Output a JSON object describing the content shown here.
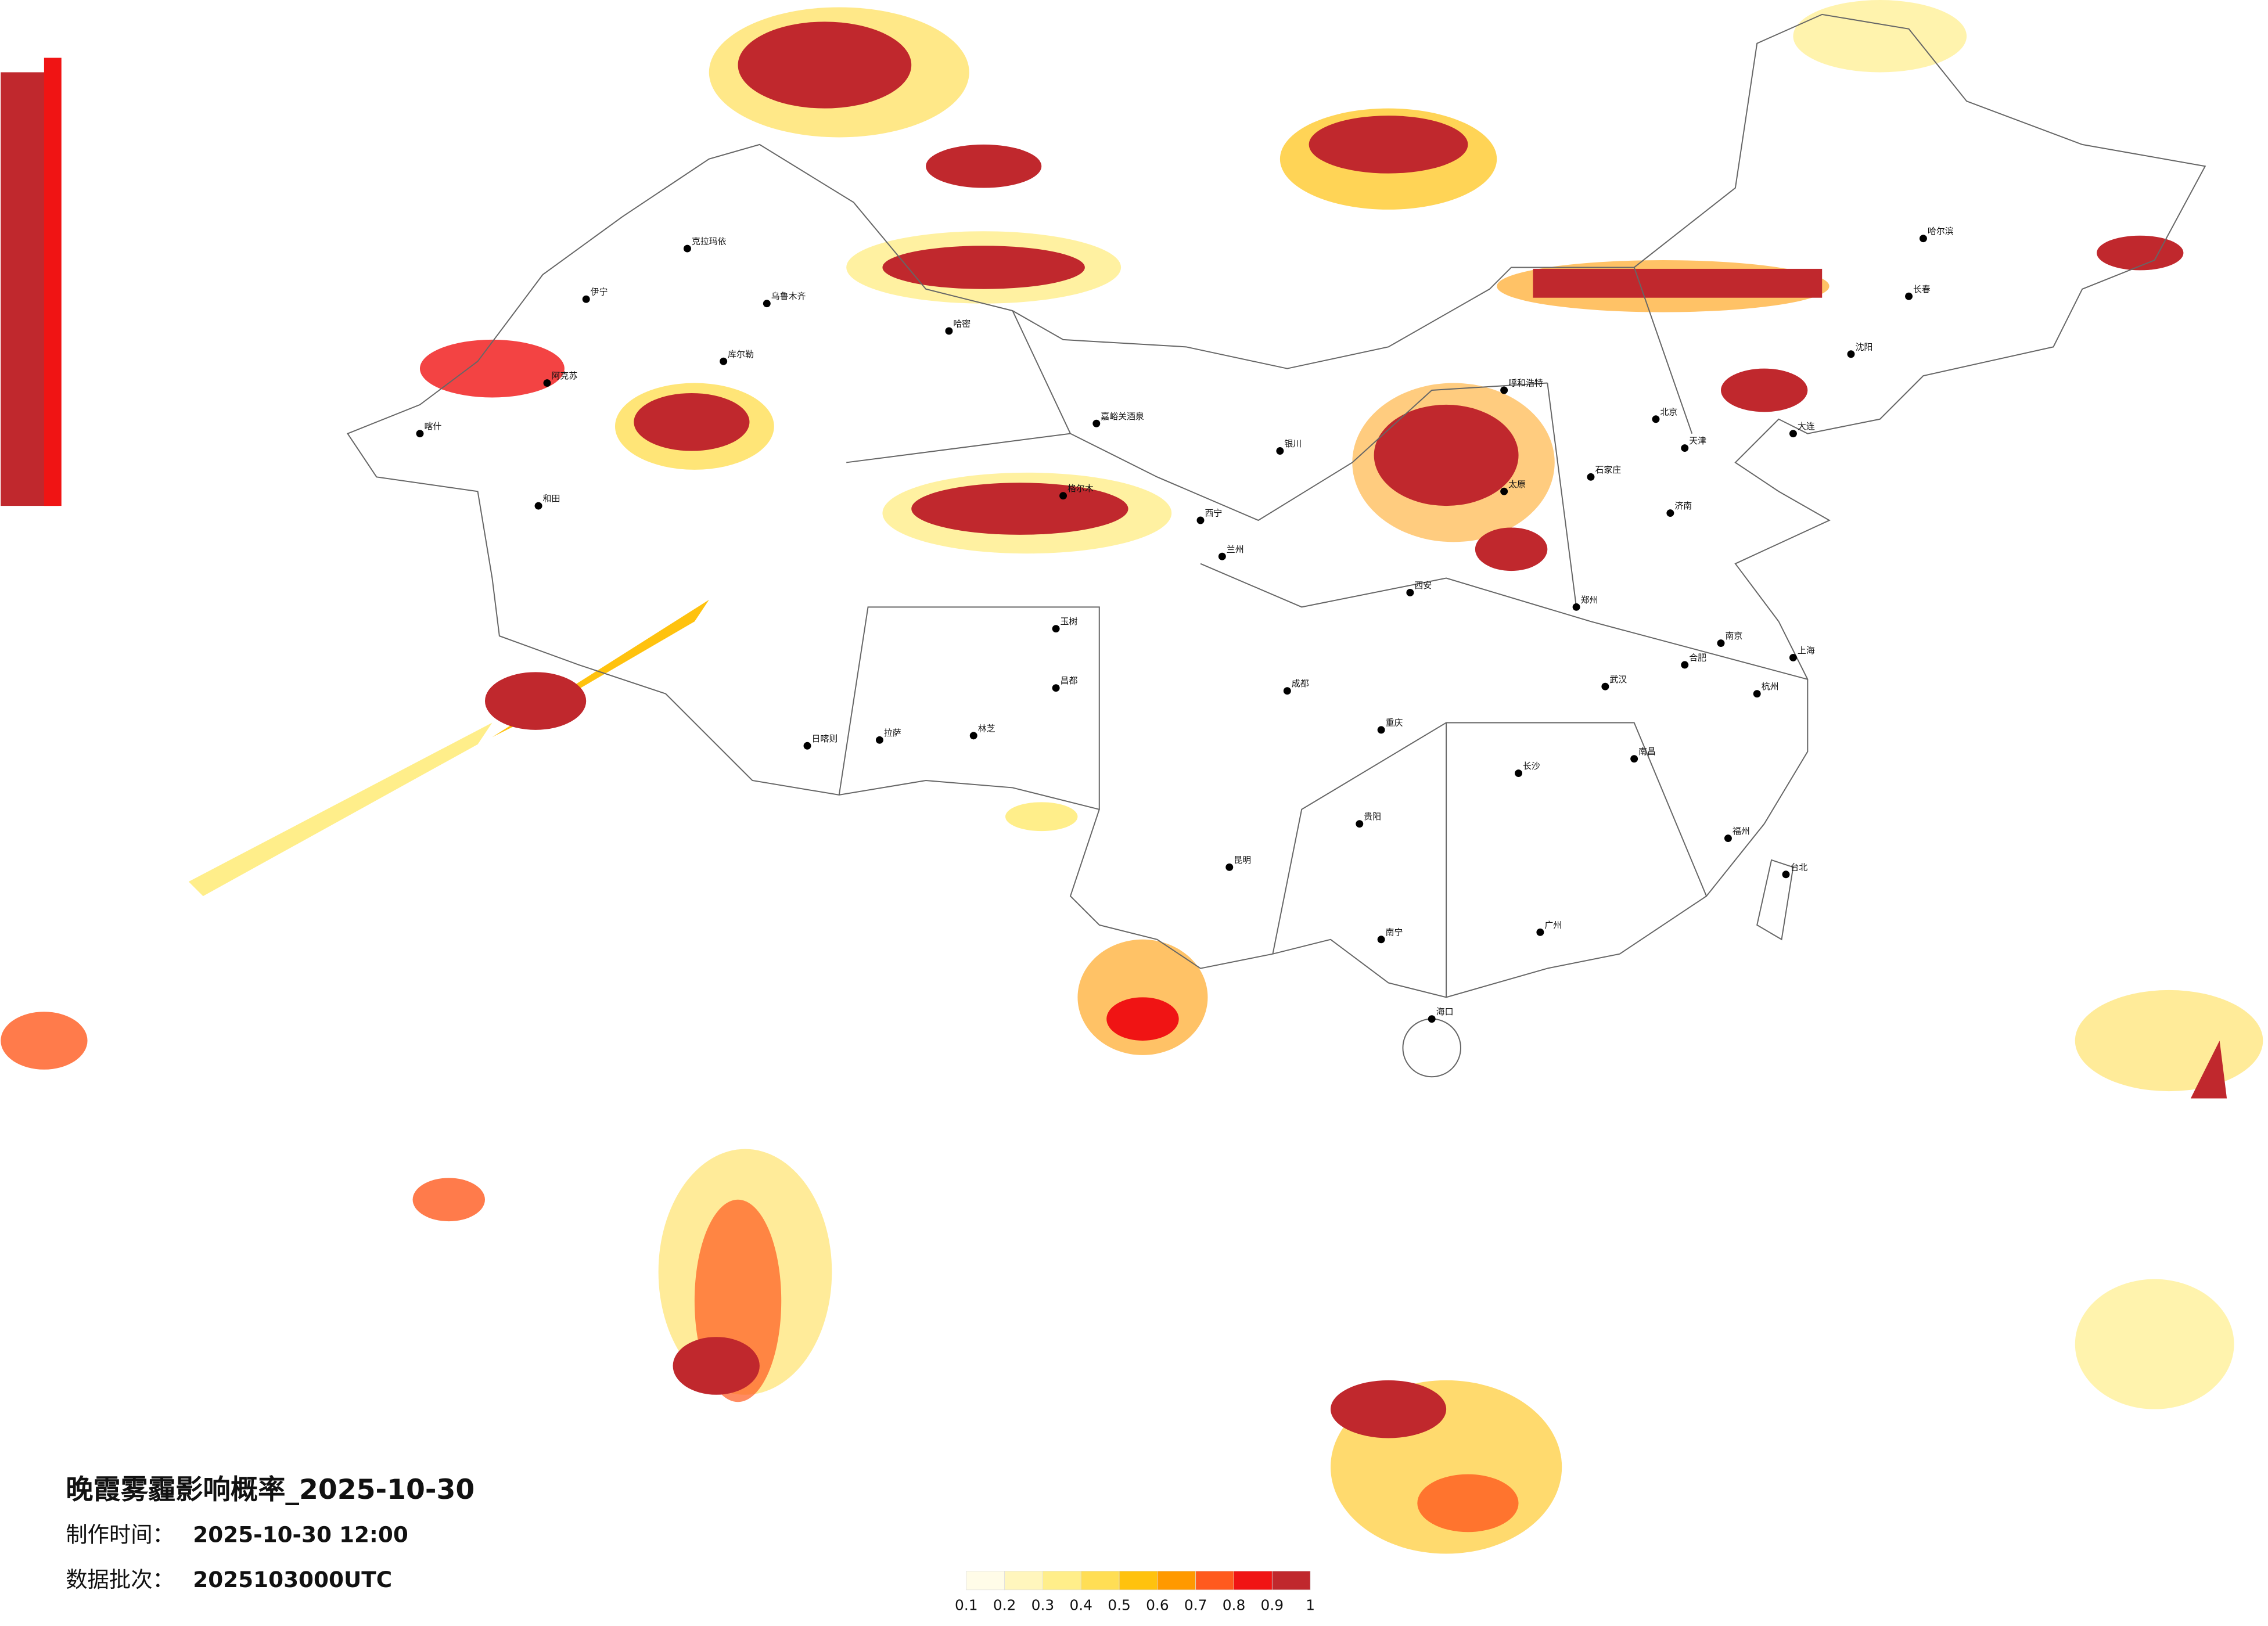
{
  "title": "晚霞雾霾影响概率_2025-10-30",
  "production_time_label": "制作时间：",
  "production_time": "2025-10-30 12:00",
  "batch_label": "数据批次：",
  "batch": "2025103000UTC",
  "legend": {
    "ticks": [
      0.1,
      0.2,
      0.3,
      0.4,
      0.5,
      0.6,
      0.7,
      0.8,
      0.9,
      1
    ],
    "colors": [
      "#fffce8",
      "#fff6bd",
      "#ffee8a",
      "#ffde55",
      "#ffc20e",
      "#ff9900",
      "#ff5a1e",
      "#f01414",
      "#c0282d"
    ]
  },
  "cities": [
    "克拉玛依",
    "伊宁",
    "阿克苏",
    "和田",
    "喀什",
    "库尔勒",
    "乌鲁木齐",
    "哈密",
    "嘉峪关酒泉",
    "格尔木",
    "拉萨",
    "日喀则",
    "林芝",
    "昌都",
    "玉树",
    "西宁",
    "兰州",
    "银川",
    "呼和浩特",
    "北京",
    "天津",
    "石家庄",
    "太原",
    "济南",
    "郑州",
    "西安",
    "成都",
    "重庆",
    "贵阳",
    "昆明",
    "南宁",
    "广州",
    "长沙",
    "武汉",
    "南京",
    "上海",
    "杭州",
    "福州",
    "南昌",
    "合肥",
    "海口",
    "台北",
    "哈尔滨",
    "长春",
    "沈阳",
    "大连"
  ]
}
